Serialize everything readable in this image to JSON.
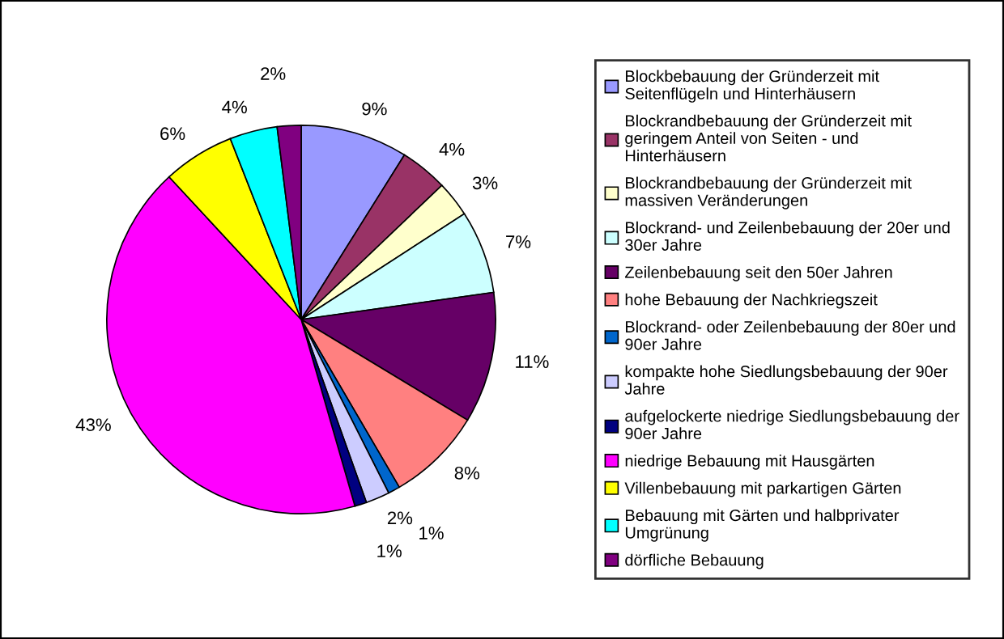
{
  "chart_data": {
    "type": "pie",
    "categories": [
      "Blockbebauung der Gründerzeit mit Seitenflügeln und Hinterhäusern",
      "Blockrandbebauung der Gründerzeit mit geringem Anteil von Seiten - und Hinterhäusern",
      "Blockrandbebauung der Gründerzeit mit massiven Veränderungen",
      "Blockrand- und Zeilenbebauung der 20er und 30er Jahre",
      "Zeilenbebauung seit den 50er Jahren",
      "hohe Bebauung der Nachkriegszeit",
      "Blockrand- oder Zeilenbebauung der 80er und 90er Jahre",
      "kompakte hohe Siedlungsbebauung der 90er Jahre",
      "aufgelockerte niedrige Siedlungsbebauung der 90er Jahre",
      "niedrige Bebauung mit Hausgärten",
      "Villenbebauung mit parkartigen Gärten",
      "Bebauung mit Gärten und halbprivater Umgrünung",
      "dörfliche Bebauung"
    ],
    "values": [
      9,
      4,
      3,
      7,
      11,
      8,
      1,
      2,
      1,
      43,
      6,
      4,
      2
    ],
    "value_labels": [
      "9%",
      "4%",
      "3%",
      "7%",
      "11%",
      "8%",
      "1%",
      "2%",
      "1%",
      "43%",
      "6%",
      "4%",
      "2%"
    ],
    "colors": [
      "#9999ff",
      "#993366",
      "#ffffcc",
      "#ccffff",
      "#660066",
      "#ff8080",
      "#0066cc",
      "#ccccff",
      "#000080",
      "#ff00ff",
      "#ffff00",
      "#00ffff",
      "#800080"
    ],
    "legend": "right"
  }
}
